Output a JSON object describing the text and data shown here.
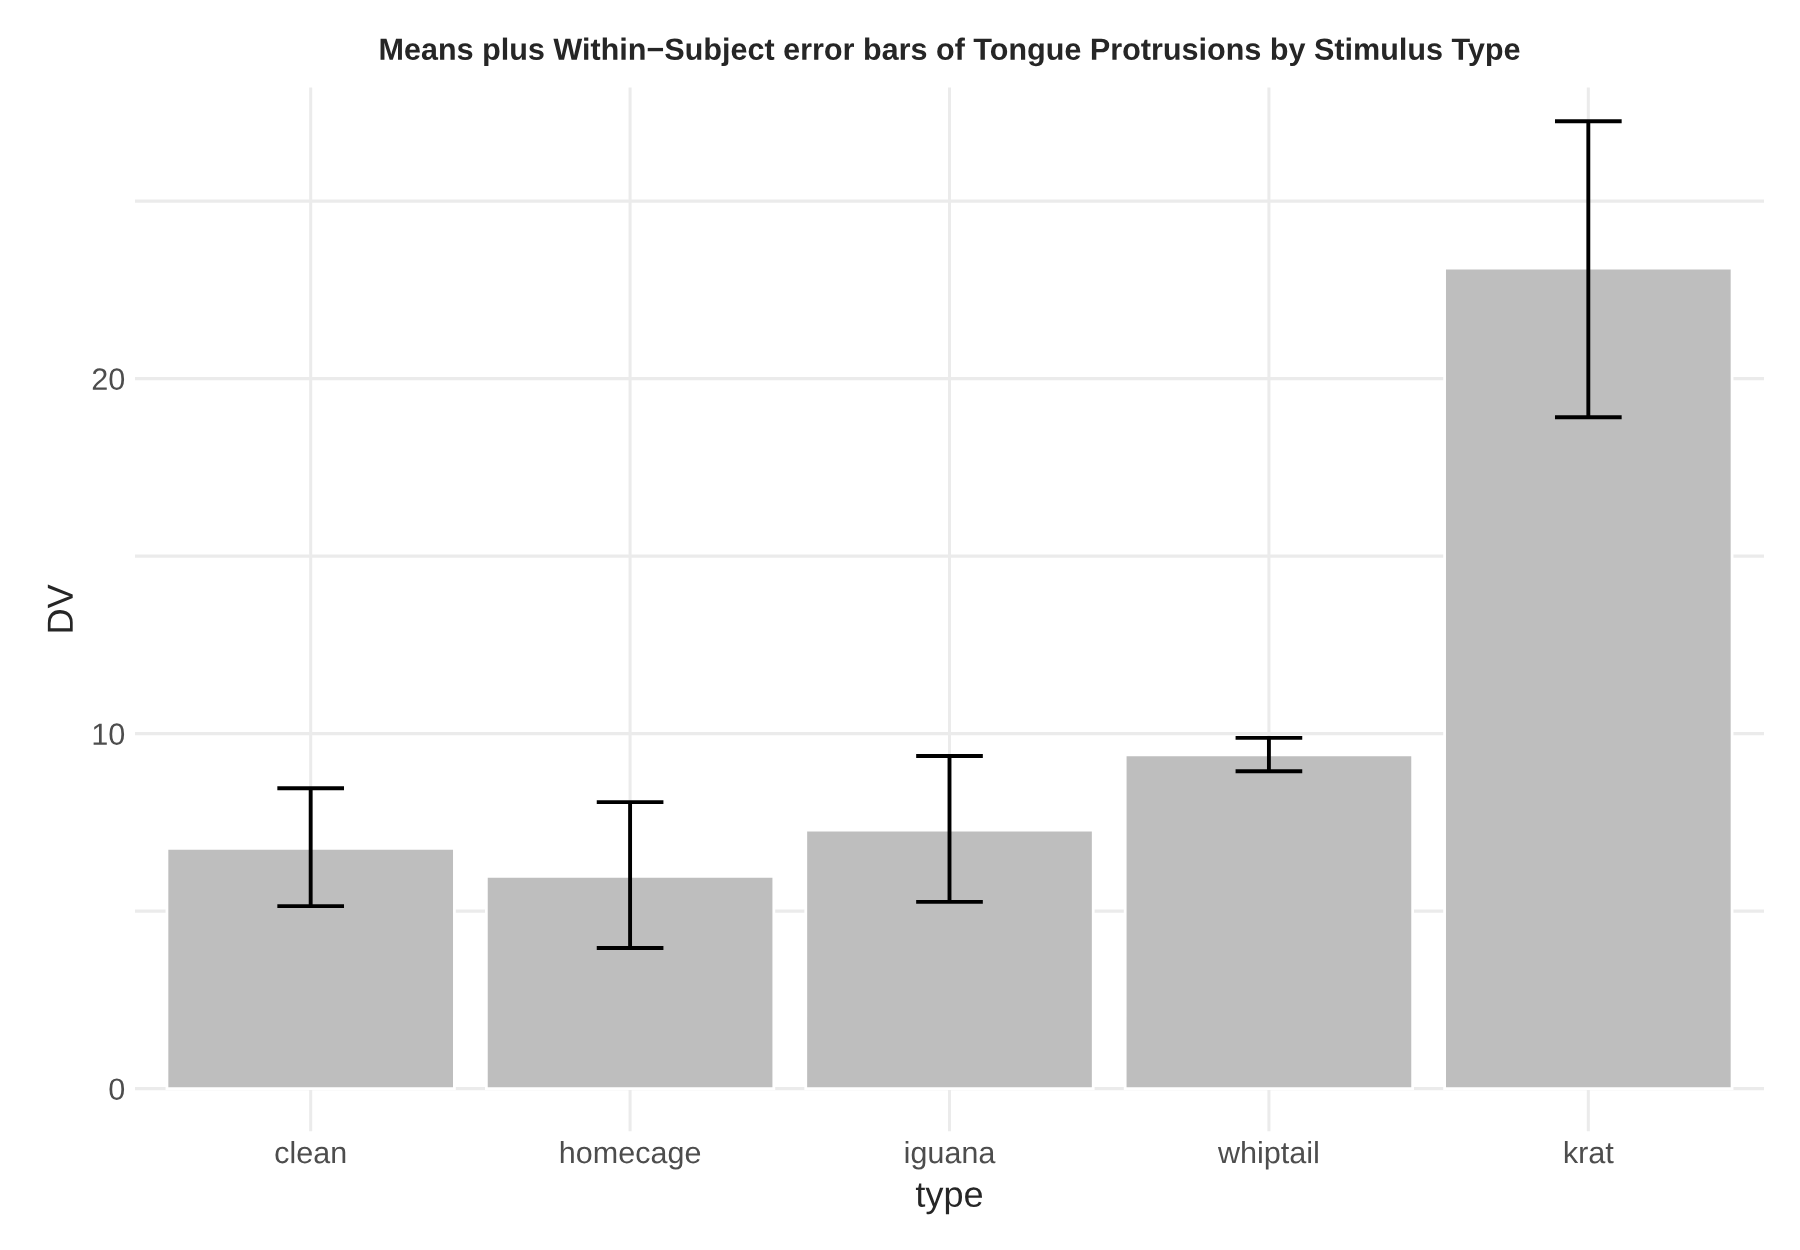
{
  "chart_data": {
    "type": "bar",
    "title": "Means plus Within−Subject error bars of Tongue Protrusions by Stimulus Type",
    "xlabel": "type",
    "ylabel": "DV",
    "categories": [
      "clean",
      "homecage",
      "iguana",
      "whiptail",
      "krat"
    ],
    "values": [
      6.77,
      5.98,
      7.28,
      9.4,
      23.11
    ],
    "errors": [
      [
        5.14,
        8.46
      ],
      [
        3.96,
        8.07
      ],
      [
        5.26,
        9.37
      ],
      [
        8.94,
        9.88
      ],
      [
        18.91,
        27.25
      ]
    ],
    "color": "#bebebe",
    "ylim": [
      -1.2,
      28.2
    ],
    "yticks": [
      0,
      {
        "value": 5,
        "label": null
      },
      10,
      {
        "value": 15,
        "label": null
      },
      20,
      {
        "value": 25,
        "label": null
      }
    ],
    "grid": true
  }
}
